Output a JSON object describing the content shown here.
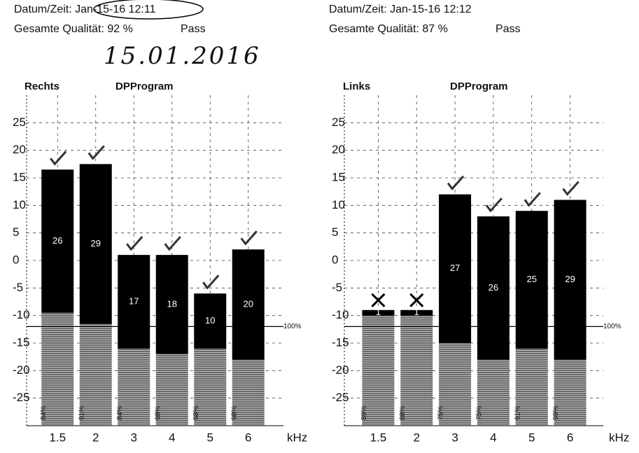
{
  "header_left": {
    "datetime": "Datum/Zeit: Jan-15-16 12:11",
    "quality": "Gesamte Qualität: 92 %",
    "result": "Pass"
  },
  "header_right": {
    "datetime": "Datum/Zeit: Jan-15-16 12:12",
    "quality": "Gesamte Qualität: 87 %",
    "result": "Pass"
  },
  "handwritten": "15.01.2016",
  "chart_data": [
    {
      "type": "bar",
      "ear": "Rechts",
      "title": "DPProgram",
      "x_label": "kHz",
      "categories": [
        "1.5",
        "2",
        "3",
        "4",
        "5",
        "6"
      ],
      "values": [
        16.5,
        17.5,
        1,
        1,
        -6,
        2
      ],
      "noise": [
        -9.5,
        -11.5,
        -16,
        -17,
        -16,
        -18
      ],
      "snr": [
        26,
        29,
        17,
        18,
        10,
        20
      ],
      "quality_labels": [
        "84%",
        "91%",
        "84%",
        "98%",
        "98%",
        "98%"
      ],
      "status": [
        "check",
        "check",
        "check",
        "check",
        "check",
        "check"
      ],
      "reference": {
        "value": -12,
        "label": "100%"
      },
      "color": "#000000",
      "noise_color": "#777777",
      "ylim": [
        -30,
        30
      ],
      "yticks": [
        25,
        20,
        15,
        10,
        5,
        0,
        -5,
        -10,
        -15,
        -20,
        -25
      ],
      "grid": true
    },
    {
      "type": "bar",
      "ear": "Links",
      "title": "DPProgram",
      "x_label": "kHz",
      "categories": [
        "1.5",
        "2",
        "3",
        "4",
        "5",
        "6"
      ],
      "values": [
        -9,
        -9,
        12,
        8,
        9,
        11
      ],
      "noise": [
        -10,
        -10,
        -15,
        -18,
        -16,
        -18
      ],
      "snr": [
        1,
        1,
        27,
        26,
        25,
        29
      ],
      "quality_labels": [
        "89%",
        "88%",
        "75%",
        "75%",
        "91%",
        "99%"
      ],
      "status": [
        "cross",
        "cross",
        "check",
        "check",
        "check",
        "check"
      ],
      "reference": {
        "value": -12,
        "label": "100%"
      },
      "color": "#000000",
      "noise_color": "#777777",
      "ylim": [
        -30,
        30
      ],
      "yticks": [
        25,
        20,
        15,
        10,
        5,
        0,
        -5,
        -10,
        -15,
        -20,
        -25
      ],
      "grid": true
    }
  ]
}
